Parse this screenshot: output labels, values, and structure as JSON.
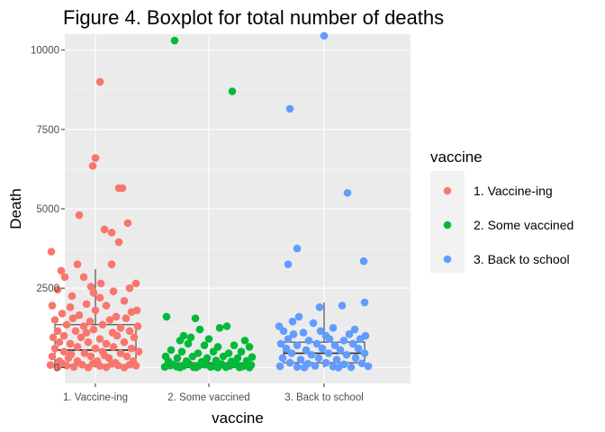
{
  "chart_data": {
    "type": "boxplot-jitter",
    "title": "Figure 4. Boxplot for total number of deaths",
    "xlabel": "vaccine",
    "ylabel": "Death",
    "ylim": [
      -500,
      10500
    ],
    "y_ticks": [
      0,
      2500,
      5000,
      7500,
      10000
    ],
    "y_tick_labels": [
      "0",
      "2500",
      "5000",
      "7500",
      "10000"
    ],
    "grid": true,
    "legend_position": "right",
    "legend": {
      "title": "vaccine",
      "entries": [
        "1. Vaccine-ing",
        "2. Some vaccined",
        "3. Back to school"
      ]
    },
    "categories": [
      "1. Vaccine-ing",
      "2. Some vaccined",
      "3. Back to school"
    ],
    "colors": [
      "#F8766D",
      "#00BA38",
      "#619CFF"
    ],
    "boxes": [
      {
        "min": 0,
        "q1": 80,
        "median": 550,
        "q3": 1350,
        "max": 3100
      },
      {
        "min": 0,
        "q1": 0,
        "median": 30,
        "q3": 150,
        "max": 350
      },
      {
        "min": 0,
        "q1": 150,
        "median": 450,
        "q3": 800,
        "max": 2050
      }
    ],
    "series": [
      {
        "name": "1. Vaccine-ing",
        "points": [
          [
            0.55,
            9000
          ],
          [
            0.5,
            6600
          ],
          [
            0.47,
            6350
          ],
          [
            0.76,
            5650
          ],
          [
            0.8,
            5650
          ],
          [
            0.32,
            4800
          ],
          [
            0.6,
            4350
          ],
          [
            0.86,
            4550
          ],
          [
            0.68,
            4250
          ],
          [
            0.76,
            3950
          ],
          [
            0.01,
            3650
          ],
          [
            0.3,
            3250
          ],
          [
            0.68,
            3250
          ],
          [
            0.12,
            3050
          ],
          [
            0.95,
            2650
          ],
          [
            0.16,
            2850
          ],
          [
            0.37,
            2850
          ],
          [
            0.56,
            2650
          ],
          [
            0.45,
            2550
          ],
          [
            0.08,
            2450
          ],
          [
            0.88,
            2500
          ],
          [
            0.48,
            2350
          ],
          [
            0.7,
            2400
          ],
          [
            0.24,
            2250
          ],
          [
            0.55,
            2200
          ],
          [
            0.82,
            2100
          ],
          [
            0.02,
            1950
          ],
          [
            0.22,
            1900
          ],
          [
            0.4,
            2000
          ],
          [
            0.62,
            1950
          ],
          [
            0.9,
            1750
          ],
          [
            0.13,
            1700
          ],
          [
            0.32,
            1650
          ],
          [
            0.5,
            1800
          ],
          [
            0.73,
            1600
          ],
          [
            0.05,
            1500
          ],
          [
            0.25,
            1550
          ],
          [
            0.44,
            1450
          ],
          [
            0.66,
            1500
          ],
          [
            0.84,
            1550
          ],
          [
            0.18,
            1350
          ],
          [
            0.37,
            1300
          ],
          [
            0.58,
            1350
          ],
          [
            0.78,
            1250
          ],
          [
            0.97,
            1300
          ],
          [
            0.08,
            1150
          ],
          [
            0.28,
            1150
          ],
          [
            0.48,
            1200
          ],
          [
            0.69,
            1100
          ],
          [
            0.88,
            1150
          ],
          [
            0.03,
            950
          ],
          [
            0.15,
            1000
          ],
          [
            0.34,
            950
          ],
          [
            0.55,
            900
          ],
          [
            0.74,
            1000
          ],
          [
            0.93,
            950
          ],
          [
            0.1,
            800
          ],
          [
            0.22,
            750
          ],
          [
            0.42,
            800
          ],
          [
            0.62,
            750
          ],
          [
            0.82,
            800
          ],
          [
            0.05,
            600
          ],
          [
            0.3,
            650
          ],
          [
            0.5,
            600
          ],
          [
            0.7,
            650
          ],
          [
            0.9,
            600
          ],
          [
            0.15,
            500
          ],
          [
            0.38,
            450
          ],
          [
            0.58,
            500
          ],
          [
            0.78,
            450
          ],
          [
            0.98,
            500
          ],
          [
            0.02,
            350
          ],
          [
            0.2,
            300
          ],
          [
            0.45,
            350
          ],
          [
            0.65,
            300
          ],
          [
            0.85,
            350
          ],
          [
            0.1,
            200
          ],
          [
            0.3,
            200
          ],
          [
            0.52,
            200
          ],
          [
            0.72,
            150
          ],
          [
            0.92,
            200
          ],
          [
            0.0,
            80
          ],
          [
            0.18,
            60
          ],
          [
            0.35,
            90
          ],
          [
            0.55,
            50
          ],
          [
            0.75,
            70
          ],
          [
            0.95,
            60
          ],
          [
            0.08,
            10
          ],
          [
            0.26,
            20
          ],
          [
            0.42,
            0
          ],
          [
            0.62,
            10
          ],
          [
            0.82,
            0
          ],
          [
            0.13,
            130
          ],
          [
            0.47,
            120
          ],
          [
            0.68,
            110
          ],
          [
            0.88,
            90
          ],
          [
            0.23,
            420
          ],
          [
            0.6,
            380
          ],
          [
            0.4,
            1100
          ],
          [
            0.96,
            1800
          ]
        ]
      },
      {
        "name": "2. Some vaccined",
        "points": [
          [
            0.12,
            10300
          ],
          [
            0.76,
            8700
          ],
          [
            0.03,
            1600
          ],
          [
            0.35,
            1550
          ],
          [
            0.62,
            1250
          ],
          [
            0.7,
            1300
          ],
          [
            0.4,
            1200
          ],
          [
            0.22,
            1000
          ],
          [
            0.3,
            950
          ],
          [
            0.18,
            850
          ],
          [
            0.5,
            900
          ],
          [
            0.9,
            850
          ],
          [
            0.27,
            750
          ],
          [
            0.45,
            700
          ],
          [
            0.6,
            650
          ],
          [
            0.78,
            700
          ],
          [
            0.95,
            650
          ],
          [
            0.08,
            550
          ],
          [
            0.2,
            500
          ],
          [
            0.38,
            450
          ],
          [
            0.55,
            500
          ],
          [
            0.72,
            450
          ],
          [
            0.86,
            500
          ],
          [
            0.02,
            350
          ],
          [
            0.15,
            300
          ],
          [
            0.32,
            350
          ],
          [
            0.48,
            300
          ],
          [
            0.66,
            350
          ],
          [
            0.82,
            300
          ],
          [
            0.98,
            330
          ],
          [
            0.05,
            200
          ],
          [
            0.25,
            200
          ],
          [
            0.42,
            180
          ],
          [
            0.58,
            220
          ],
          [
            0.75,
            190
          ],
          [
            0.92,
            210
          ],
          [
            0.1,
            100
          ],
          [
            0.28,
            120
          ],
          [
            0.46,
            90
          ],
          [
            0.64,
            110
          ],
          [
            0.8,
            100
          ],
          [
            0.97,
            80
          ],
          [
            0.01,
            20
          ],
          [
            0.14,
            30
          ],
          [
            0.33,
            10
          ],
          [
            0.52,
            20
          ],
          [
            0.69,
            10
          ],
          [
            0.87,
            30
          ],
          [
            0.07,
            60
          ],
          [
            0.22,
            50
          ],
          [
            0.39,
            60
          ],
          [
            0.57,
            40
          ],
          [
            0.73,
            50
          ],
          [
            0.91,
            60
          ],
          [
            0.18,
            0
          ],
          [
            0.36,
            5
          ],
          [
            0.6,
            0
          ],
          [
            0.84,
            5
          ],
          [
            0.44,
            150
          ],
          [
            0.95,
            0
          ]
        ]
      },
      {
        "name": "3. Back to school",
        "points": [
          [
            0.5,
            10450
          ],
          [
            0.12,
            8150
          ],
          [
            0.76,
            5500
          ],
          [
            0.2,
            3750
          ],
          [
            0.1,
            3250
          ],
          [
            0.94,
            3350
          ],
          [
            0.7,
            1950
          ],
          [
            0.95,
            2050
          ],
          [
            0.45,
            1900
          ],
          [
            0.22,
            1600
          ],
          [
            0.15,
            1450
          ],
          [
            0.38,
            1400
          ],
          [
            0.0,
            1300
          ],
          [
            0.6,
            1250
          ],
          [
            0.84,
            1200
          ],
          [
            0.05,
            1150
          ],
          [
            0.27,
            1100
          ],
          [
            0.52,
            1000
          ],
          [
            0.78,
            1050
          ],
          [
            0.96,
            1000
          ],
          [
            0.1,
            900
          ],
          [
            0.33,
            850
          ],
          [
            0.56,
            900
          ],
          [
            0.72,
            850
          ],
          [
            0.9,
            900
          ],
          [
            0.02,
            750
          ],
          [
            0.2,
            700
          ],
          [
            0.42,
            750
          ],
          [
            0.62,
            700
          ],
          [
            0.82,
            750
          ],
          [
            0.08,
            600
          ],
          [
            0.3,
            550
          ],
          [
            0.48,
            600
          ],
          [
            0.68,
            550
          ],
          [
            0.88,
            600
          ],
          [
            0.14,
            450
          ],
          [
            0.36,
            400
          ],
          [
            0.55,
            450
          ],
          [
            0.75,
            400
          ],
          [
            0.95,
            450
          ],
          [
            0.04,
            300
          ],
          [
            0.24,
            250
          ],
          [
            0.44,
            300
          ],
          [
            0.64,
            250
          ],
          [
            0.85,
            300
          ],
          [
            0.12,
            150
          ],
          [
            0.32,
            120
          ],
          [
            0.52,
            150
          ],
          [
            0.72,
            100
          ],
          [
            0.92,
            130
          ],
          [
            0.01,
            40
          ],
          [
            0.2,
            20
          ],
          [
            0.4,
            50
          ],
          [
            0.6,
            30
          ],
          [
            0.8,
            10
          ],
          [
            0.99,
            40
          ],
          [
            0.28,
            0
          ],
          [
            0.66,
            0
          ],
          [
            0.46,
            1150
          ],
          [
            0.16,
            1050
          ]
        ]
      }
    ]
  }
}
